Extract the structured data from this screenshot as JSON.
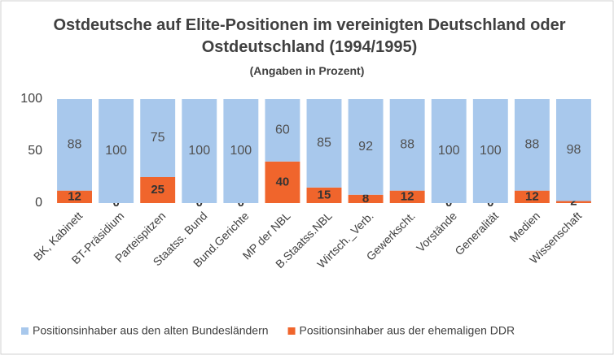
{
  "chart_data": {
    "type": "stacked_bar",
    "title": "Ostdeutsche auf Elite-Positionen im vereinigten Deutschland oder Ostdeutschland  (1994/1995)",
    "subtitle": "(Angaben in Prozent)",
    "categories": [
      "BK, Kabinett",
      "BT-Präsidium",
      "Parteispitzen",
      "Staatss. Bund",
      "Bund.Gerichte",
      "MP der NBL",
      "B.Staatss.NBL",
      "Wirtsch._Verb.",
      "Gewerkscht.",
      "Vorstände",
      "Generalität",
      "Medien",
      "Wissenschaft"
    ],
    "series": [
      {
        "name": "Positionsinhaber aus der ehemaligen DDR",
        "color": "#f0652c",
        "values": [
          12,
          0,
          25,
          0,
          0,
          40,
          15,
          8,
          12,
          0,
          0,
          12,
          2
        ]
      },
      {
        "name": "Positionsinhaber aus den alten Bundesländern",
        "color": "#a8c8ec",
        "values": [
          88,
          100,
          75,
          100,
          100,
          60,
          85,
          92,
          88,
          100,
          100,
          88,
          98
        ]
      }
    ],
    "ylim": [
      0,
      100
    ],
    "yticks": [
      0,
      50,
      100
    ],
    "grid": false,
    "legend": "bottom"
  }
}
